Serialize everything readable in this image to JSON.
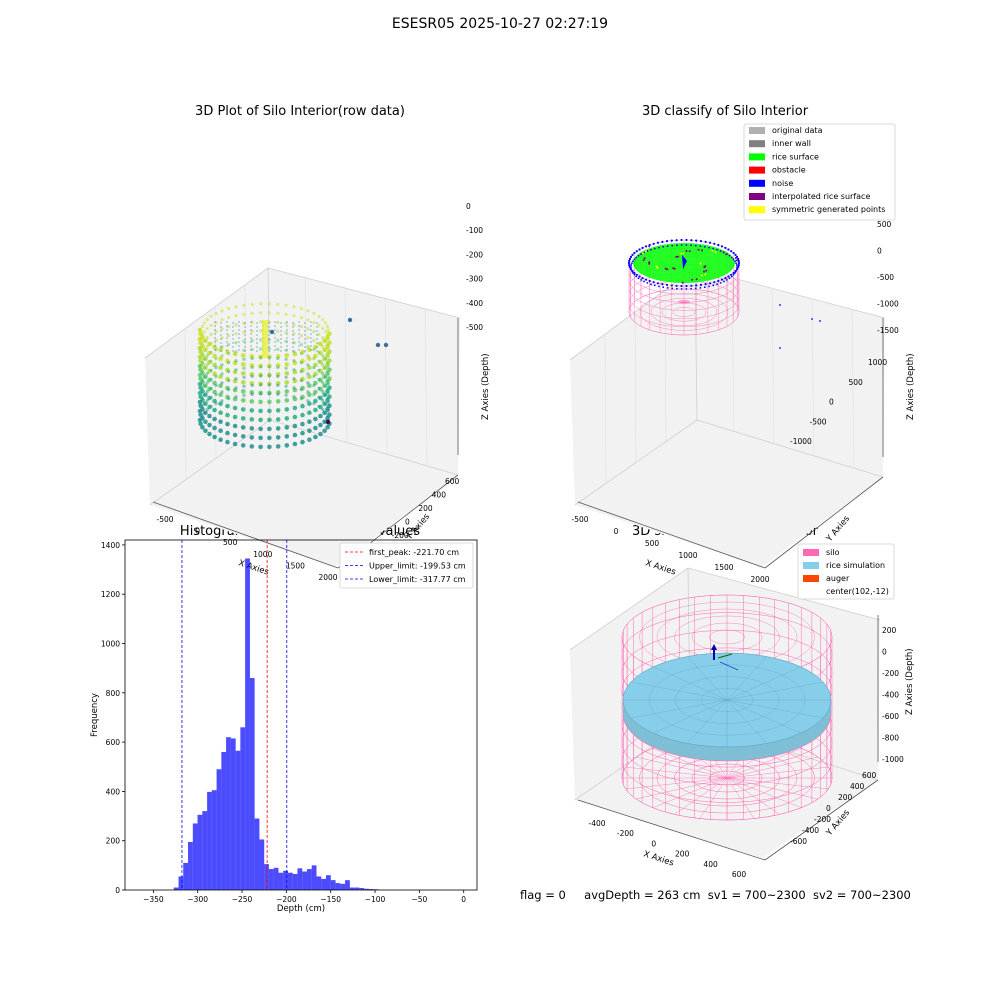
{
  "suptitle": "ESESR05 2025-10-27 02:27:19",
  "panel_raw": {
    "title": "3D Plot of Silo Interior(row data)",
    "xlabel": "X Axies",
    "ylabel": "Y Axies",
    "zlabel": "Z Axies (Depth)",
    "xticks": [
      "-500",
      "0",
      "500",
      "1000",
      "1500",
      "2000"
    ],
    "yticks": [
      "600",
      "400",
      "200",
      "0",
      "-200",
      "-400",
      "-600"
    ],
    "zticks": [
      "0",
      "-100",
      "-200",
      "-300",
      "-400",
      "-500"
    ]
  },
  "panel_classify": {
    "title": "3D classify of Silo Interior",
    "xlabel": "X Axies",
    "ylabel": "Y Axies",
    "zlabel": "Z Axies (Depth)",
    "xticks": [
      "-500",
      "0",
      "500",
      "1000",
      "1500",
      "2000"
    ],
    "yticks": [
      "1000",
      "500",
      "0",
      "-500",
      "-1000"
    ],
    "zticks": [
      "500",
      "0",
      "-500",
      "-1000",
      "-1500"
    ],
    "legend": [
      {
        "label": "original data",
        "color": "#b0b0b0"
      },
      {
        "label": "inner wall",
        "color": "#808080"
      },
      {
        "label": "rice surface",
        "color": "#00ff00"
      },
      {
        "label": "obstacle",
        "color": "#ff0000"
      },
      {
        "label": "noise",
        "color": "#0000ff"
      },
      {
        "label": "interpolated rice surface",
        "color": "#800080"
      },
      {
        "label": "symmetric generated points",
        "color": "#ffff00"
      }
    ]
  },
  "panel_sim": {
    "title": "3D simulation of Silo Interior",
    "xlabel": "X Axies",
    "ylabel": "Y Axies",
    "zlabel": "Z Axies (Depth)",
    "xticks": [
      "-400",
      "-200",
      "0",
      "200",
      "400",
      "600"
    ],
    "yticks": [
      "600",
      "400",
      "200",
      "0",
      "-200",
      "-400",
      "-600"
    ],
    "zticks": [
      "200",
      "0",
      "-200",
      "-400",
      "-600",
      "-800",
      "-1000"
    ],
    "legend": [
      {
        "label": "silo",
        "color": "#ff69b4"
      },
      {
        "label": "rice simulation",
        "color": "#87ceeb"
      },
      {
        "label": "auger",
        "color": "#ff4500"
      },
      {
        "label": "center(102,-12)",
        "color": ""
      }
    ]
  },
  "chart_data": {
    "type": "bar",
    "title": "Histogram of Z-Axies (Height) Values",
    "xlabel": "Depth (cm)",
    "ylabel": "Frequency",
    "xlim": [
      -382,
      15
    ],
    "ylim": [
      0,
      1420
    ],
    "xticks": [
      -350,
      -300,
      -250,
      -200,
      -150,
      -100,
      -50,
      0
    ],
    "yticks": [
      0,
      200,
      400,
      600,
      800,
      1000,
      1200,
      1400
    ],
    "bar_color": "#0000ff",
    "bins": [
      {
        "x0": -327,
        "x1": -321.6,
        "value": 10
      },
      {
        "x0": -321.6,
        "x1": -316.3,
        "value": 55
      },
      {
        "x0": -316.3,
        "x1": -310.9,
        "value": 110
      },
      {
        "x0": -310.9,
        "x1": -305.5,
        "value": 195
      },
      {
        "x0": -305.5,
        "x1": -300.2,
        "value": 270
      },
      {
        "x0": -300.2,
        "x1": -294.8,
        "value": 305
      },
      {
        "x0": -294.8,
        "x1": -289.4,
        "value": 320
      },
      {
        "x0": -289.4,
        "x1": -284.1,
        "value": 398
      },
      {
        "x0": -284.1,
        "x1": -278.7,
        "value": 405
      },
      {
        "x0": -278.7,
        "x1": -273.3,
        "value": 490
      },
      {
        "x0": -273.3,
        "x1": -268.0,
        "value": 560
      },
      {
        "x0": -268.0,
        "x1": -262.6,
        "value": 620
      },
      {
        "x0": -262.6,
        "x1": -257.2,
        "value": 615
      },
      {
        "x0": -257.2,
        "x1": -251.9,
        "value": 565
      },
      {
        "x0": -251.9,
        "x1": -246.5,
        "value": 660
      },
      {
        "x0": -246.5,
        "x1": -241.1,
        "value": 1345
      },
      {
        "x0": -241.1,
        "x1": -235.8,
        "value": 860
      },
      {
        "x0": -235.8,
        "x1": -230.4,
        "value": 290
      },
      {
        "x0": -230.4,
        "x1": -225.0,
        "value": 205
      },
      {
        "x0": -225.0,
        "x1": -219.7,
        "value": 105
      },
      {
        "x0": -219.7,
        "x1": -214.3,
        "value": 85
      },
      {
        "x0": -214.3,
        "x1": -208.9,
        "value": 90
      },
      {
        "x0": -208.9,
        "x1": -203.6,
        "value": 70
      },
      {
        "x0": -203.6,
        "x1": -198.2,
        "value": 78
      },
      {
        "x0": -198.2,
        "x1": -192.8,
        "value": 70
      },
      {
        "x0": -192.8,
        "x1": -187.5,
        "value": 65
      },
      {
        "x0": -187.5,
        "x1": -182.1,
        "value": 88
      },
      {
        "x0": -182.1,
        "x1": -176.7,
        "value": 75
      },
      {
        "x0": -176.7,
        "x1": -171.4,
        "value": 85
      },
      {
        "x0": -171.4,
        "x1": -166.0,
        "value": 100
      },
      {
        "x0": -166.0,
        "x1": -160.6,
        "value": 55
      },
      {
        "x0": -160.6,
        "x1": -155.3,
        "value": 45
      },
      {
        "x0": -155.3,
        "x1": -149.9,
        "value": 60
      },
      {
        "x0": -149.9,
        "x1": -144.5,
        "value": 40
      },
      {
        "x0": -144.5,
        "x1": -139.2,
        "value": 28
      },
      {
        "x0": -139.2,
        "x1": -133.8,
        "value": 25
      },
      {
        "x0": -133.8,
        "x1": -128.4,
        "value": 40
      },
      {
        "x0": -128.4,
        "x1": -123.1,
        "value": 10
      },
      {
        "x0": -123.1,
        "x1": -117.7,
        "value": 10
      },
      {
        "x0": -117.7,
        "x1": -112.3,
        "value": 8
      },
      {
        "x0": -112.3,
        "x1": -107.0,
        "value": 5
      },
      {
        "x0": -107.0,
        "x1": -101.6,
        "value": 4
      },
      {
        "x0": -101.6,
        "x1": -96.2,
        "value": 3
      }
    ],
    "vlines": [
      {
        "x": -221.7,
        "color": "#ff0000",
        "label": "first_peak: -221.70 cm"
      },
      {
        "x": -199.53,
        "color": "#0000ff",
        "label": "Upper_limit: -199.53 cm"
      },
      {
        "x": -317.77,
        "color": "#0000ff",
        "label": "Lower_limit: -317.77 cm"
      }
    ],
    "legend_position": "top-right"
  },
  "status": {
    "flag": "flag = 0",
    "avg_depth": "avgDepth = 263 cm",
    "sv1": "sv1 = 700~2300",
    "sv2": "sv2 = 700~2300"
  }
}
